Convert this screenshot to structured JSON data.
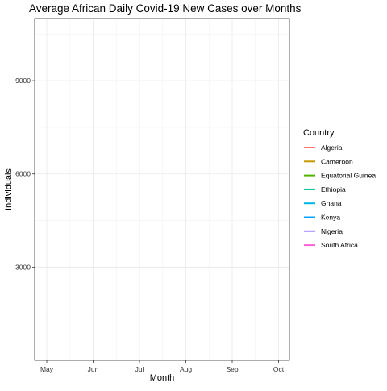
{
  "chart_data": {
    "type": "line",
    "title": "Average African Daily Covid-19 New Cases over Months",
    "xlabel": "Month",
    "ylabel": "Individuals",
    "x_ticks": [
      "May",
      "Jun",
      "Jul",
      "Aug",
      "Sep",
      "Oct"
    ],
    "y_ticks": [
      3000,
      6000,
      9000
    ],
    "ylim": [
      0,
      11000
    ],
    "grid": true,
    "legend": {
      "title": "Country",
      "placement": "right"
    },
    "series": [
      {
        "name": "Algeria",
        "color": "#F8766D",
        "values": []
      },
      {
        "name": "Cameroon",
        "color": "#C49A00",
        "values": []
      },
      {
        "name": "Equatorial Guinea",
        "color": "#53B400",
        "values": []
      },
      {
        "name": "Ethiopia",
        "color": "#00C094",
        "values": []
      },
      {
        "name": "Ghana",
        "color": "#00B6EB",
        "values": []
      },
      {
        "name": "Kenya",
        "color": "#06A4FF",
        "values": []
      },
      {
        "name": "Nigeria",
        "color": "#A58AFF",
        "values": []
      },
      {
        "name": "South Africa",
        "color": "#FB61D7",
        "values": []
      }
    ]
  }
}
